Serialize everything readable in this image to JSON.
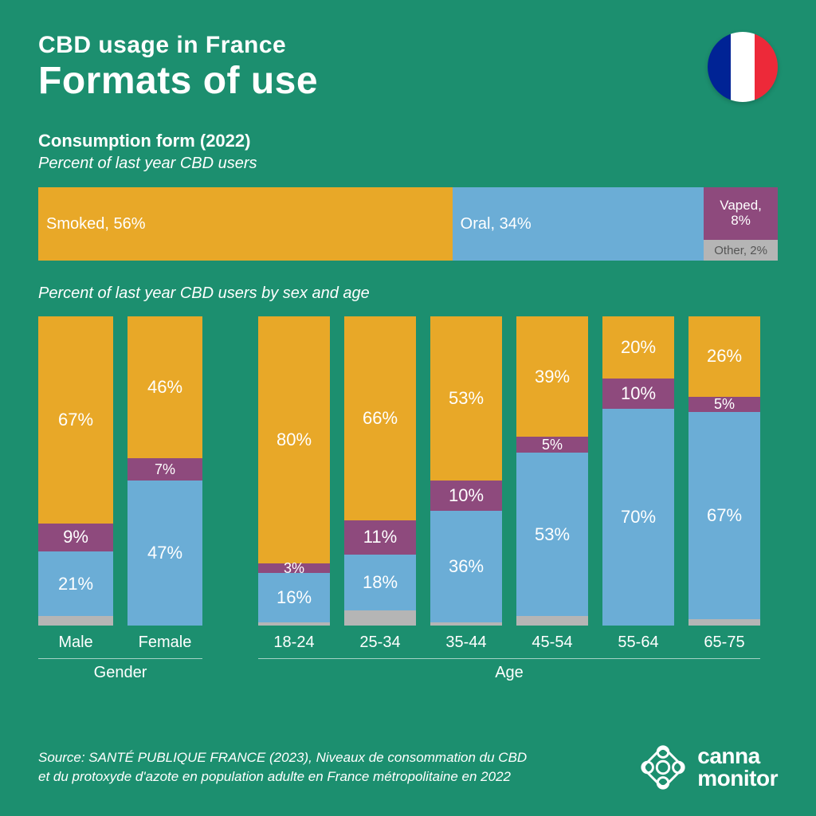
{
  "header": {
    "title_small": "CBD usage in France",
    "title_large": "Formats of use",
    "flag_colors": [
      "#002395",
      "#ffffff",
      "#ed2939"
    ]
  },
  "colors": {
    "smoked": "#e8a828",
    "oral": "#6badd6",
    "vaped": "#8e4a7d",
    "other": "#b5b5b5",
    "vaped_outline": "#e8a828"
  },
  "section1": {
    "title": "Consumption form (2022)",
    "subtitle": "Percent of last year CBD users",
    "bar": {
      "segments": [
        {
          "key": "smoked",
          "label": "Smoked, 56%",
          "pct": 56,
          "text_color": "#ffffff"
        },
        {
          "key": "oral",
          "label": "Oral, 34%",
          "pct": 34,
          "text_color": "#ffffff"
        },
        {
          "key": "vaped_stack",
          "pct": 10,
          "stack": [
            {
              "key": "vaped",
              "label": "Vaped, 8%",
              "text_color": "#ffffff"
            },
            {
              "key": "other",
              "label": "Other, 2%",
              "text_color": "#555555"
            }
          ]
        }
      ]
    }
  },
  "section2": {
    "subtitle": "Percent of last year CBD users by sex and age",
    "gender_group_label": "Gender",
    "age_group_label": "Age",
    "gender": [
      {
        "label": "Male",
        "other": 3,
        "oral": 21,
        "vaped": 9,
        "smoked": 67
      },
      {
        "label": "Female",
        "other": 0,
        "oral": 47,
        "vaped": 7,
        "smoked": 46
      }
    ],
    "age": [
      {
        "label": "18-24",
        "other": 1,
        "oral": 16,
        "vaped": 3,
        "smoked": 80
      },
      {
        "label": "25-34",
        "other": 5,
        "oral": 18,
        "vaped": 11,
        "smoked": 66
      },
      {
        "label": "35-44",
        "other": 1,
        "oral": 36,
        "vaped": 10,
        "smoked": 53
      },
      {
        "label": "45-54",
        "other": 3,
        "oral": 53,
        "vaped": 5,
        "smoked": 39
      },
      {
        "label": "55-64",
        "other": 0,
        "oral": 70,
        "vaped": 10,
        "smoked": 20
      },
      {
        "label": "65-75",
        "other": 2,
        "oral": 67,
        "vaped": 5,
        "smoked": 26
      }
    ],
    "bar_max": 100,
    "seg_text_color": "#ffffff",
    "min_pct_for_label": 3
  },
  "footer": {
    "source": "Source: SANTÉ PUBLIQUE FRANCE (2023), Niveaux de consommation du CBD et du protoxyde d'azote en population adulte en France métropolitaine en 2022",
    "logo_line1": "canna",
    "logo_line2": "monitor"
  }
}
